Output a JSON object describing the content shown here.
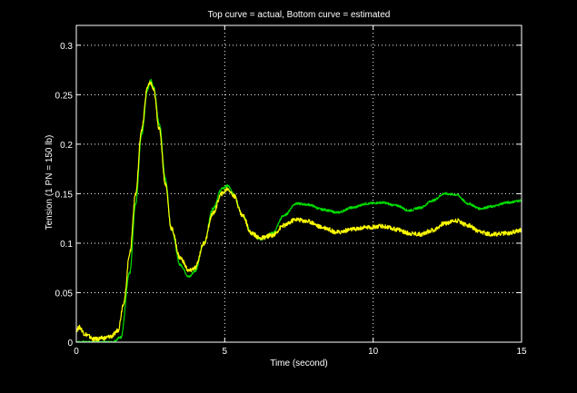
{
  "chart_data": {
    "type": "line",
    "title": "Top curve = actual, Bottom curve = estimated",
    "xlabel": "Time (second)",
    "ylabel": "Tension (1 PN = 150 lb)",
    "xlim": [
      0,
      15
    ],
    "ylim": [
      0,
      0.32
    ],
    "x_ticks": [
      "0",
      "5",
      "10",
      "15"
    ],
    "y_ticks": [
      "0",
      "0.05",
      "0.1",
      "0.15",
      "0.2",
      "0.25",
      "0.3"
    ],
    "x_tick_values": [
      0,
      5,
      10,
      15
    ],
    "y_tick_values": [
      0,
      0.05,
      0.1,
      0.15,
      0.2,
      0.25,
      0.3
    ],
    "grid": true,
    "background": "#000000",
    "axes_color": "#ffffff",
    "series": [
      {
        "color": "#00dd00",
        "x": [
          0,
          1.2,
          1.5,
          1.8,
          2.0,
          2.2,
          2.4,
          2.5,
          2.6,
          2.8,
          3.0,
          3.2,
          3.5,
          3.8,
          4.0,
          4.3,
          4.6,
          4.9,
          5.1,
          5.3,
          5.6,
          5.9,
          6.2,
          6.6,
          7.0,
          7.4,
          7.8,
          8.3,
          8.8,
          9.3,
          9.8,
          10.3,
          10.8,
          11.2,
          11.6,
          12.0,
          12.4,
          12.8,
          13.2,
          13.6,
          14.0,
          14.5,
          15.0
        ],
        "y": [
          0,
          0.0,
          0.005,
          0.07,
          0.14,
          0.21,
          0.255,
          0.265,
          0.258,
          0.22,
          0.165,
          0.115,
          0.078,
          0.066,
          0.072,
          0.1,
          0.135,
          0.155,
          0.158,
          0.15,
          0.128,
          0.11,
          0.104,
          0.11,
          0.128,
          0.14,
          0.139,
          0.134,
          0.131,
          0.136,
          0.14,
          0.141,
          0.138,
          0.133,
          0.136,
          0.143,
          0.15,
          0.149,
          0.14,
          0.135,
          0.137,
          0.141,
          0.143
        ]
      },
      {
        "color": "#ffff00",
        "x": [
          0,
          0.1,
          0.3,
          0.6,
          0.9,
          1.2,
          1.4,
          1.6,
          1.8,
          2.0,
          2.2,
          2.4,
          2.5,
          2.6,
          2.8,
          3.0,
          3.2,
          3.5,
          3.8,
          4.0,
          4.3,
          4.6,
          4.9,
          5.1,
          5.3,
          5.6,
          5.9,
          6.2,
          6.6,
          7.0,
          7.4,
          7.8,
          8.3,
          8.8,
          9.3,
          9.8,
          10.3,
          10.8,
          11.2,
          11.6,
          12.0,
          12.4,
          12.8,
          13.2,
          13.6,
          14.0,
          14.5,
          15.0
        ],
        "y": [
          0.012,
          0.015,
          0.008,
          0.003,
          0.004,
          0.006,
          0.012,
          0.04,
          0.09,
          0.15,
          0.215,
          0.258,
          0.262,
          0.255,
          0.215,
          0.16,
          0.115,
          0.085,
          0.072,
          0.075,
          0.1,
          0.13,
          0.15,
          0.155,
          0.148,
          0.128,
          0.11,
          0.105,
          0.108,
          0.118,
          0.124,
          0.122,
          0.116,
          0.111,
          0.114,
          0.116,
          0.117,
          0.114,
          0.11,
          0.109,
          0.113,
          0.12,
          0.123,
          0.118,
          0.111,
          0.109,
          0.11,
          0.113
        ]
      }
    ]
  }
}
